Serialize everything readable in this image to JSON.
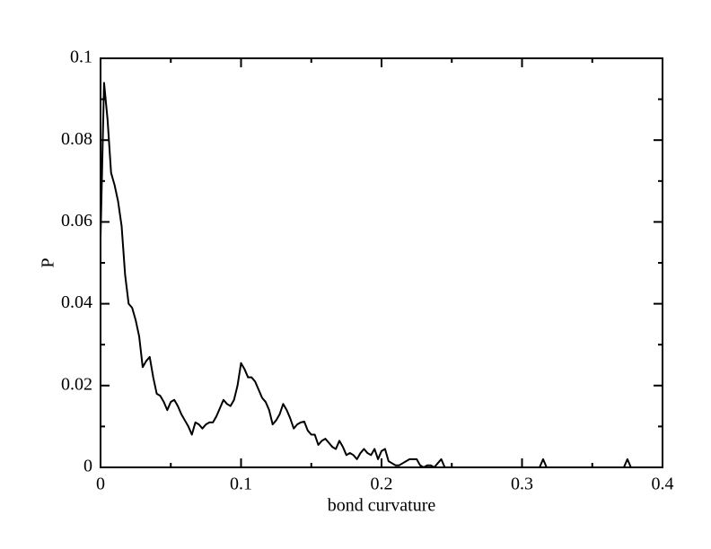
{
  "chart_data": {
    "type": "line",
    "xlabel": "bond curvature",
    "ylabel": "P",
    "x": [
      0,
      0.0025,
      0.005,
      0.0075,
      0.01,
      0.0125,
      0.015,
      0.0175,
      0.02,
      0.0225,
      0.025,
      0.0275,
      0.03,
      0.0325,
      0.035,
      0.0375,
      0.04,
      0.0425,
      0.045,
      0.0475,
      0.05,
      0.0525,
      0.055,
      0.0575,
      0.06,
      0.0625,
      0.065,
      0.0675,
      0.07,
      0.0725,
      0.075,
      0.0775,
      0.08,
      0.0825,
      0.085,
      0.0875,
      0.09,
      0.0925,
      0.095,
      0.0975,
      0.1,
      0.1025,
      0.105,
      0.1075,
      0.11,
      0.1125,
      0.115,
      0.1175,
      0.12,
      0.1225,
      0.125,
      0.1275,
      0.13,
      0.1325,
      0.135,
      0.1375,
      0.14,
      0.1425,
      0.145,
      0.1475,
      0.15,
      0.1525,
      0.155,
      0.1575,
      0.16,
      0.1625,
      0.165,
      0.1675,
      0.17,
      0.1725,
      0.175,
      0.1775,
      0.18,
      0.1825,
      0.185,
      0.1875,
      0.19,
      0.1925,
      0.195,
      0.1975,
      0.2,
      0.2025,
      0.205,
      0.2075,
      0.21,
      0.2125,
      0.215,
      0.2175,
      0.22,
      0.2225,
      0.225,
      0.2275,
      0.23,
      0.2325,
      0.235,
      0.2375,
      0.24,
      0.2425,
      0.245,
      0.3125,
      0.315,
      0.3175,
      0.3725,
      0.375,
      0.3775
    ],
    "values": [
      0.056,
      0.094,
      0.085,
      0.072,
      0.069,
      0.065,
      0.059,
      0.047,
      0.04,
      0.039,
      0.036,
      0.032,
      0.0245,
      0.026,
      0.027,
      0.022,
      0.018,
      0.0175,
      0.016,
      0.014,
      0.016,
      0.0165,
      0.015,
      0.013,
      0.0115,
      0.01,
      0.008,
      0.011,
      0.0105,
      0.0095,
      0.0105,
      0.011,
      0.011,
      0.0125,
      0.0145,
      0.0165,
      0.0155,
      0.015,
      0.0165,
      0.02,
      0.0255,
      0.024,
      0.022,
      0.022,
      0.021,
      0.019,
      0.017,
      0.016,
      0.014,
      0.0105,
      0.0115,
      0.013,
      0.0155,
      0.014,
      0.012,
      0.0095,
      0.0105,
      0.011,
      0.0112,
      0.009,
      0.008,
      0.008,
      0.0055,
      0.0065,
      0.007,
      0.006,
      0.005,
      0.0045,
      0.0065,
      0.005,
      0.003,
      0.0035,
      0.003,
      0.002,
      0.0035,
      0.0045,
      0.0035,
      0.003,
      0.0045,
      0.002,
      0.004,
      0.0045,
      0.0015,
      0.001,
      0.0005,
      0.0005,
      0.001,
      0.0015,
      0.002,
      0.002,
      0.002,
      0.0005,
      0,
      0.0005,
      0.0005,
      0,
      0.001,
      0.002,
      0,
      0,
      0.002,
      0,
      0,
      0.002,
      0
    ],
    "color": "#000000",
    "xlim": [
      0,
      0.4
    ],
    "xticks": [
      0,
      0.1,
      0.2,
      0.3,
      0.4
    ],
    "ylim": [
      0,
      0.1
    ],
    "yticks": [
      0,
      0.02,
      0.04,
      0.06,
      0.08,
      0.1
    ]
  }
}
